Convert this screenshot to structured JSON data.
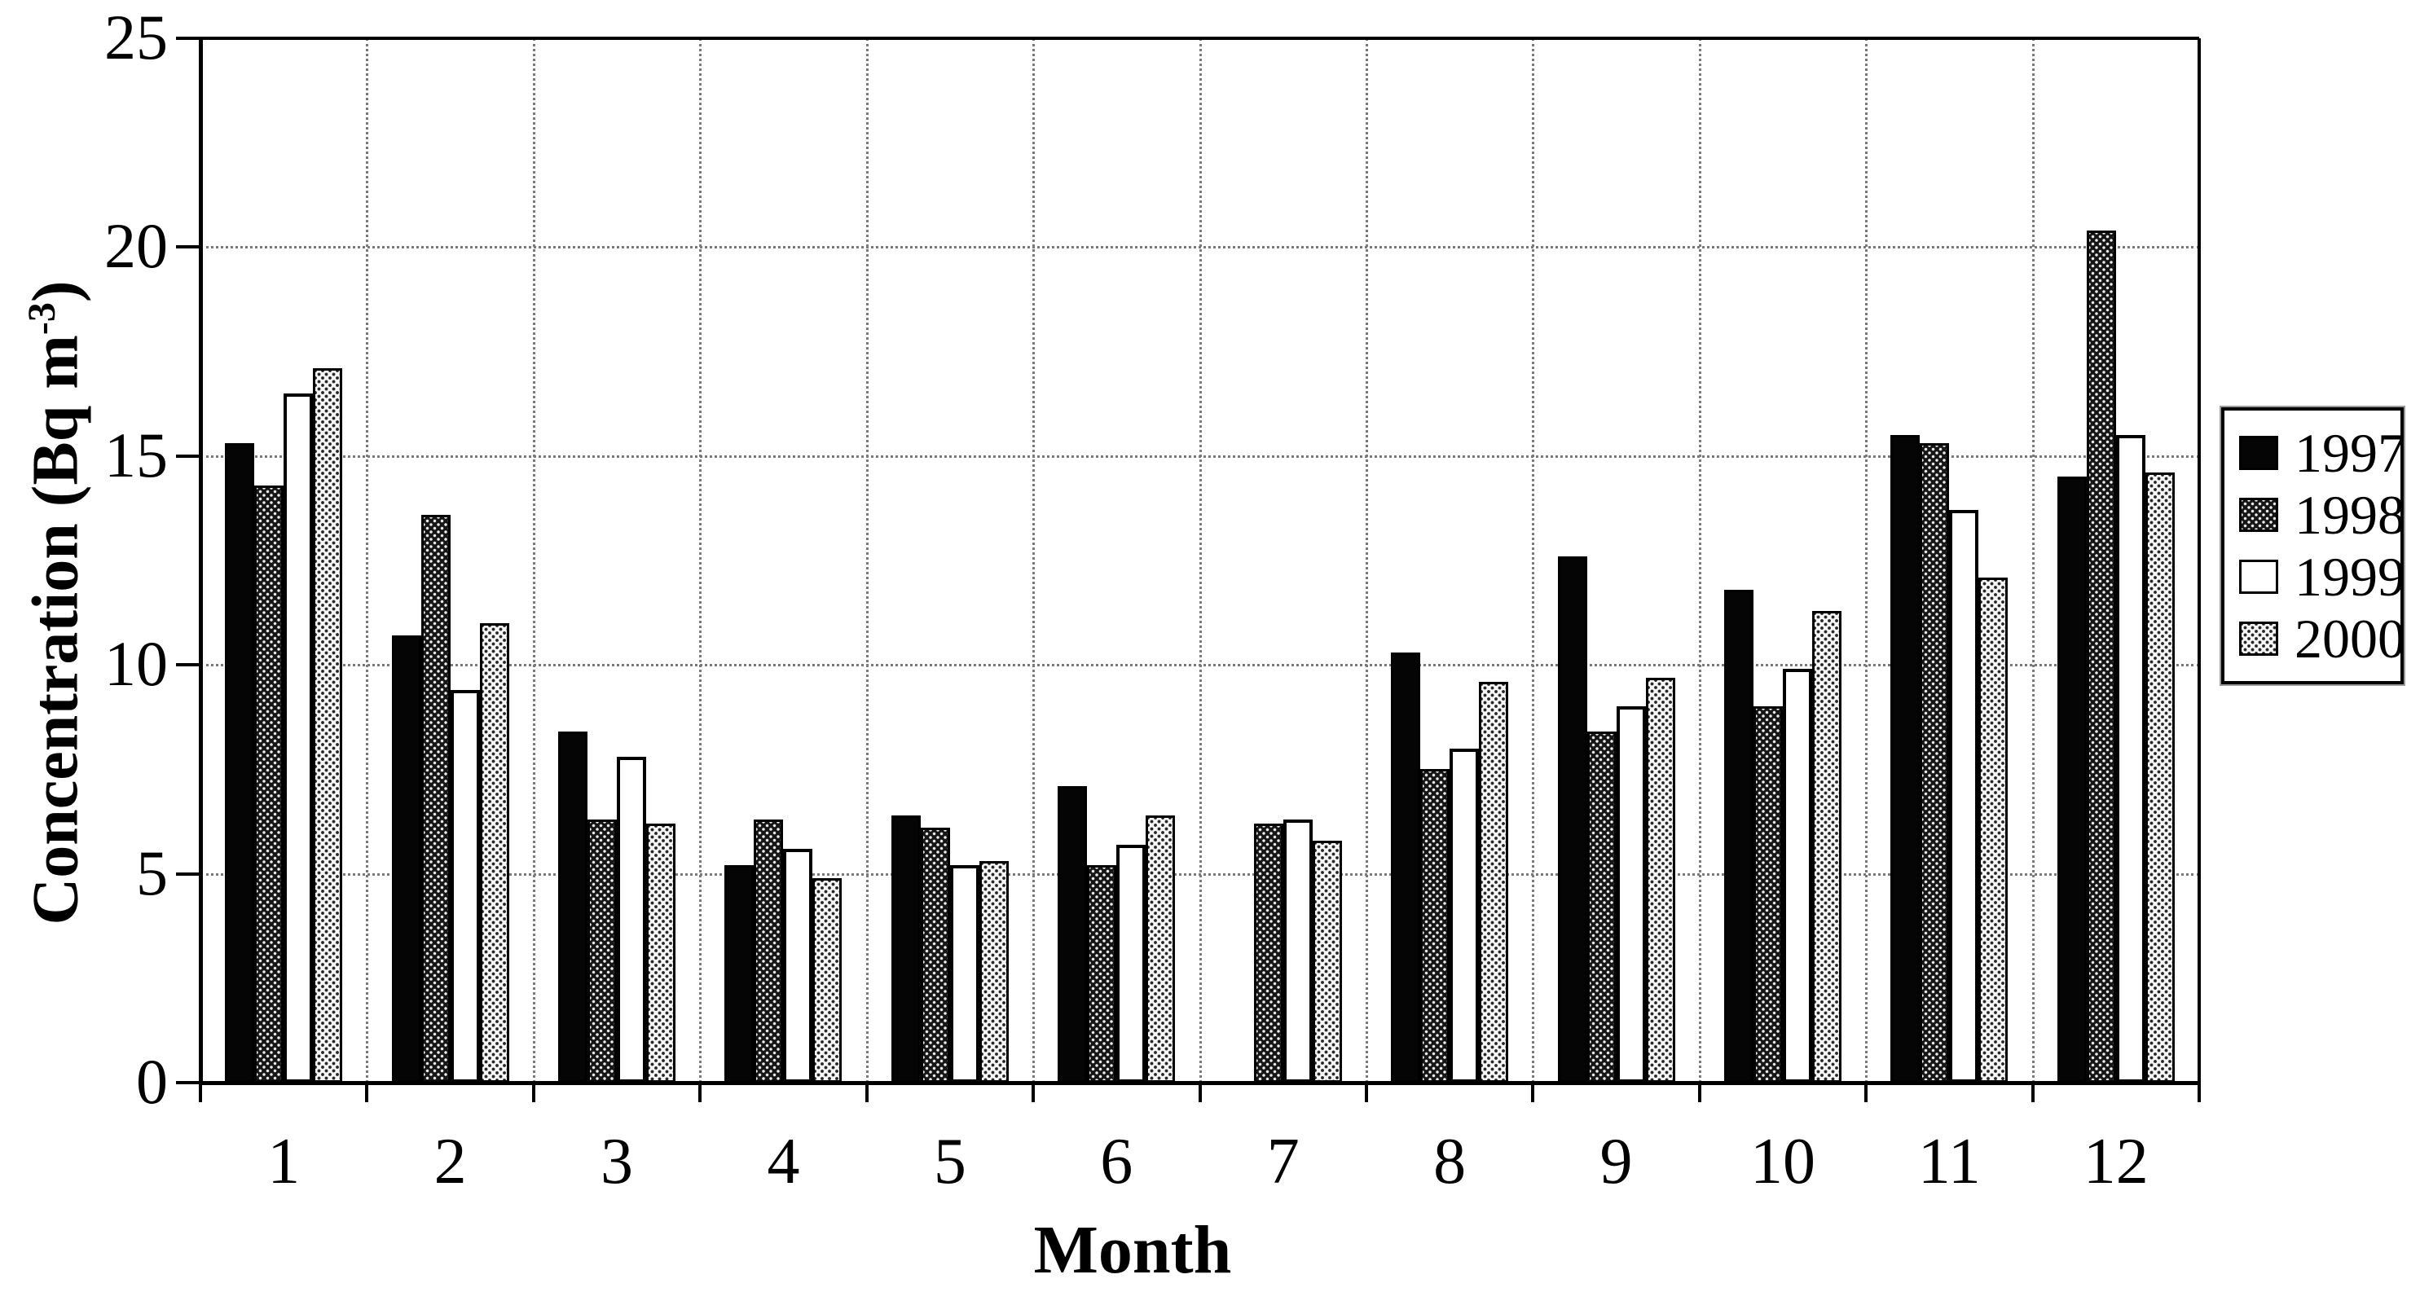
{
  "figure": {
    "xlabel": "Month",
    "ylabel": {
      "prefix": "Concentration (Bq m",
      "superscript": "-3",
      "suffix": ")"
    }
  },
  "chart_data": {
    "type": "bar",
    "title": "",
    "xlabel": "Month",
    "ylabel": "Concentration (Bq m-3)",
    "categories": [
      "1",
      "2",
      "3",
      "4",
      "5",
      "6",
      "7",
      "8",
      "9",
      "10",
      "11",
      "12"
    ],
    "series": [
      {
        "name": "1997",
        "pattern": "solid-black",
        "color": "#000000",
        "values": [
          15.3,
          10.7,
          8.4,
          5.2,
          6.4,
          7.1,
          null,
          10.3,
          12.6,
          11.8,
          15.5,
          14.5
        ]
      },
      {
        "name": "1998",
        "pattern": "dark-hatch",
        "color": "#2e2e2e",
        "values": [
          14.3,
          13.6,
          6.3,
          6.3,
          6.1,
          5.2,
          6.2,
          7.5,
          8.4,
          9.0,
          15.3,
          20.4
        ]
      },
      {
        "name": "1999",
        "pattern": "white",
        "color": "#ffffff",
        "values": [
          16.5,
          9.4,
          7.8,
          5.6,
          5.2,
          5.7,
          6.3,
          8.0,
          9.0,
          9.9,
          13.7,
          15.5
        ]
      },
      {
        "name": "2000",
        "pattern": "light-dot",
        "color": "#c9c9c9",
        "values": [
          17.1,
          11.0,
          6.2,
          4.9,
          5.3,
          6.4,
          5.8,
          9.6,
          9.7,
          11.3,
          12.1,
          14.6
        ]
      }
    ],
    "ylim": [
      0,
      25
    ],
    "yticks": [
      0,
      5,
      10,
      15,
      20,
      25
    ],
    "grid": "dotted-both-axes",
    "legend_position": "right-outside",
    "missing_data": [
      {
        "series": "1997",
        "category": "7"
      }
    ]
  }
}
